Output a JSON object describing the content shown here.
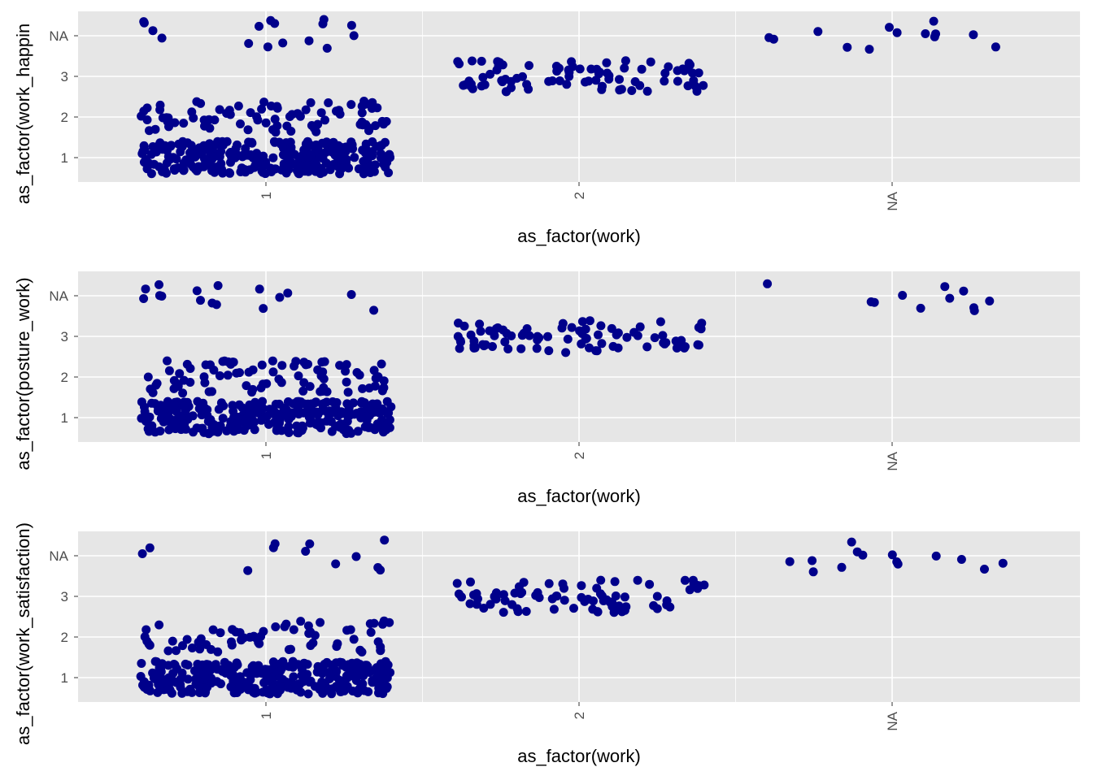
{
  "colors": {
    "panel_background": "#e6e6e6",
    "grid": "#ffffff",
    "point": "#00008b",
    "tick_text": "#4d4d4d",
    "title_text": "#000000"
  },
  "chart_data": [
    {
      "type": "scatter",
      "jitter": true,
      "xlabel": "as_factor(work)",
      "ylabel": "as_factor(work_happin",
      "categories_x": [
        "1",
        "2",
        "NA"
      ],
      "categories_y": [
        "1",
        "2",
        "3",
        "NA"
      ],
      "grid": true,
      "series": [
        {
          "color": "#00008b",
          "groups": [
            {
              "x": "1",
              "y": "1",
              "count": 300
            },
            {
              "x": "1",
              "y": "2",
              "count": 80
            },
            {
              "x": "1",
              "y": "NA",
              "count": 16
            },
            {
              "x": "2",
              "y": "3",
              "count": 85
            },
            {
              "x": "NA",
              "y": "NA",
              "count": 13
            }
          ]
        }
      ]
    },
    {
      "type": "scatter",
      "jitter": true,
      "xlabel": "as_factor(work)",
      "ylabel": "as_factor(posture_work)",
      "categories_x": [
        "1",
        "2",
        "NA"
      ],
      "categories_y": [
        "1",
        "2",
        "3",
        "NA"
      ],
      "grid": true,
      "series": [
        {
          "color": "#00008b",
          "groups": [
            {
              "x": "1",
              "y": "1",
              "count": 300
            },
            {
              "x": "1",
              "y": "2",
              "count": 85
            },
            {
              "x": "1",
              "y": "NA",
              "count": 16
            },
            {
              "x": "2",
              "y": "3",
              "count": 85
            },
            {
              "x": "NA",
              "y": "NA",
              "count": 11
            }
          ]
        }
      ]
    },
    {
      "type": "scatter",
      "jitter": true,
      "xlabel": "as_factor(work)",
      "ylabel": "as_factor(work_satisfaction)",
      "categories_x": [
        "1",
        "2",
        "NA"
      ],
      "categories_y": [
        "1",
        "2",
        "3",
        "NA"
      ],
      "grid": true,
      "series": [
        {
          "color": "#00008b",
          "groups": [
            {
              "x": "1",
              "y": "1",
              "count": 300
            },
            {
              "x": "1",
              "y": "2",
              "count": 65
            },
            {
              "x": "1",
              "y": "NA",
              "count": 12
            },
            {
              "x": "2",
              "y": "3",
              "count": 80
            },
            {
              "x": "NA",
              "y": "NA",
              "count": 14
            }
          ]
        }
      ]
    }
  ]
}
